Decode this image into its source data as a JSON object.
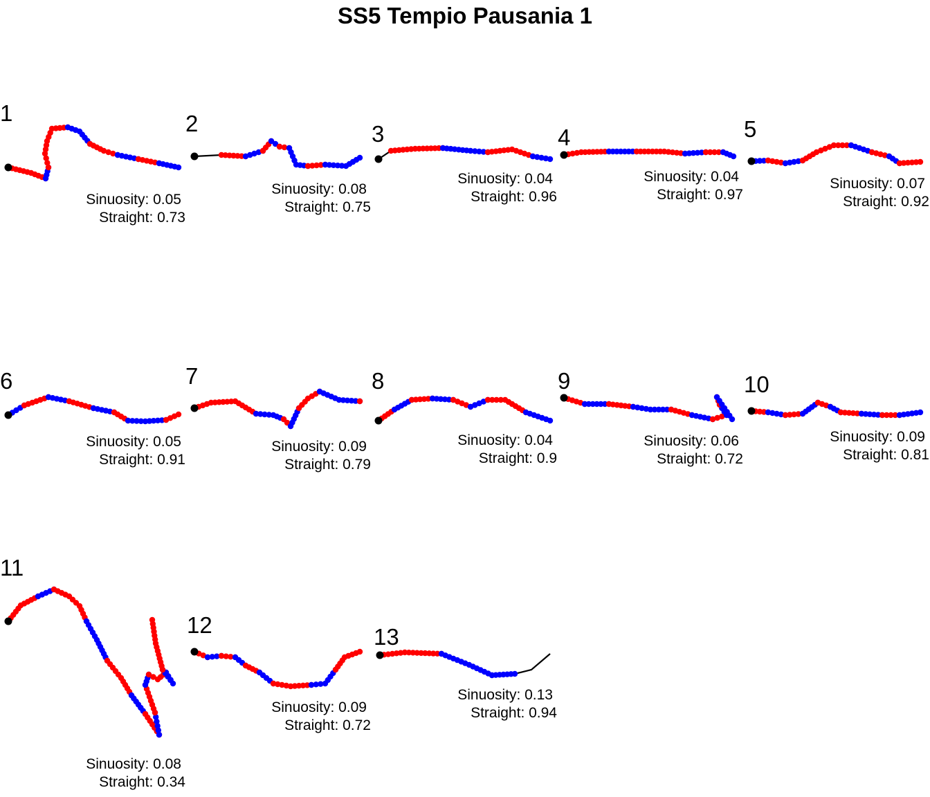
{
  "chart_data": {
    "type": "scatter",
    "title": "SS5 Tempio Pausania 1",
    "colors": {
      "line": "#000000",
      "start": "#000000",
      "red": "#ff0000",
      "blue": "#0000ff"
    },
    "panels": [
      {
        "label": "1",
        "sinuosity": "Sinuosity: 0.05",
        "straight": "Straight: 0.73"
      },
      {
        "label": "2",
        "sinuosity": "Sinuosity: 0.08",
        "straight": "Straight: 0.75"
      },
      {
        "label": "3",
        "sinuosity": "Sinuosity: 0.04",
        "straight": "Straight: 0.96"
      },
      {
        "label": "4",
        "sinuosity": "Sinuosity: 0.04",
        "straight": "Straight: 0.97"
      },
      {
        "label": "5",
        "sinuosity": "Sinuosity: 0.07",
        "straight": "Straight: 0.92"
      },
      {
        "label": "6",
        "sinuosity": "Sinuosity: 0.05",
        "straight": "Straight: 0.91"
      },
      {
        "label": "7",
        "sinuosity": "Sinuosity: 0.09",
        "straight": "Straight: 0.79"
      },
      {
        "label": "8",
        "sinuosity": "Sinuosity: 0.04",
        "straight": "Straight: 0.9"
      },
      {
        "label": "9",
        "sinuosity": "Sinuosity: 0.06",
        "straight": "Straight: 0.72"
      },
      {
        "label": "10",
        "sinuosity": "Sinuosity: 0.09",
        "straight": "Straight: 0.81"
      },
      {
        "label": "11",
        "sinuosity": "Sinuosity: 0.08",
        "straight": "Straight: 0.34"
      },
      {
        "label": "12",
        "sinuosity": "Sinuosity: 0.09",
        "straight": "Straight: 0.72"
      },
      {
        "label": "13",
        "sinuosity": "Sinuosity: 0.13",
        "straight": "Straight: 0.94"
      }
    ]
  }
}
